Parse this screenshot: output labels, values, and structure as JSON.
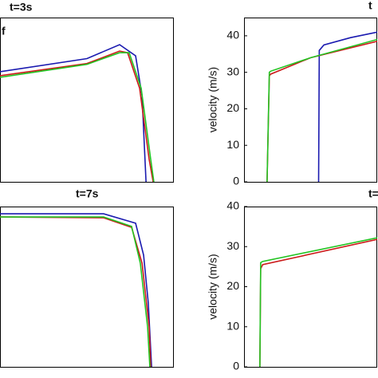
{
  "chart_data": [
    {
      "type": "line",
      "title": "t=3s",
      "annotation": "f",
      "xlim": [
        0,
        100
      ],
      "ylim": [
        0,
        100
      ],
      "series": [
        {
          "name": "blue",
          "color": "#1a1ab0",
          "x": [
            0,
            50,
            68.8,
            78,
            81.7,
            84
          ],
          "values": [
            67,
            75,
            83.5,
            76.7,
            52.4,
            0
          ]
        },
        {
          "name": "red",
          "color": "#cc1a1a",
          "x": [
            0,
            50,
            68.8,
            73.4,
            80.3,
            85.8,
            88.1
          ],
          "values": [
            64.6,
            72,
            79.6,
            78.6,
            57,
            13.6,
            0
          ]
        },
        {
          "name": "green",
          "color": "#22c422",
          "x": [
            0,
            50,
            68.8,
            74.3,
            81.2,
            86.7,
            88.5
          ],
          "values": [
            63.6,
            71.5,
            78.6,
            78.6,
            57,
            13.6,
            0
          ]
        }
      ]
    },
    {
      "type": "line",
      "title": "t",
      "ylabel": "velocity (m/s)",
      "xlim": [
        0,
        100
      ],
      "ylim": [
        0,
        45
      ],
      "yticks": [
        0,
        10,
        20,
        30,
        40
      ],
      "series": [
        {
          "name": "blue",
          "color": "#1a1ab0",
          "x": [
            56,
            56.5,
            60,
            80,
            100
          ],
          "values": [
            0,
            36,
            37.5,
            39.5,
            41
          ]
        },
        {
          "name": "red",
          "color": "#cc1a1a",
          "x": [
            17.3,
            19,
            20,
            50,
            100
          ],
          "values": [
            0,
            29,
            29.5,
            34,
            38.5
          ]
        },
        {
          "name": "green",
          "color": "#22c422",
          "x": [
            17.3,
            19,
            20,
            50,
            100
          ],
          "values": [
            0,
            30,
            30.3,
            34,
            39
          ]
        }
      ]
    },
    {
      "type": "line",
      "title": "t=7s",
      "xlim": [
        0,
        100
      ],
      "ylim": [
        0,
        100
      ],
      "series": [
        {
          "name": "blue",
          "color": "#1a1ab0",
          "x": [
            0,
            59.6,
            78,
            82.6,
            85.3,
            87.2
          ],
          "values": [
            95.5,
            95.5,
            89.6,
            69.7,
            39.8,
            0
          ]
        },
        {
          "name": "red",
          "color": "#cc1a1a",
          "x": [
            0,
            59.6,
            75.7,
            81.7,
            85.8,
            86.7
          ],
          "values": [
            93.5,
            93,
            87,
            64.7,
            24.9,
            0
          ]
        },
        {
          "name": "green",
          "color": "#22c422",
          "x": [
            0,
            59.6,
            75.7,
            80.7,
            84.9,
            86.2
          ],
          "values": [
            93.5,
            93.5,
            87.6,
            64.7,
            24.9,
            0
          ]
        }
      ]
    },
    {
      "type": "line",
      "title": "t=",
      "ylabel": "velocity (m/s)",
      "xlim": [
        0,
        100
      ],
      "ylim": [
        0,
        40
      ],
      "yticks": [
        0,
        10,
        20,
        30,
        40
      ],
      "series": [
        {
          "name": "red",
          "color": "#cc1a1a",
          "x": [
            11.9,
            12.5,
            14,
            100
          ],
          "values": [
            0,
            24.5,
            25.5,
            31.8
          ]
        },
        {
          "name": "green",
          "color": "#22c422",
          "x": [
            11.9,
            12.5,
            14,
            100
          ],
          "values": [
            0,
            26,
            26.3,
            32.2
          ]
        }
      ]
    }
  ]
}
